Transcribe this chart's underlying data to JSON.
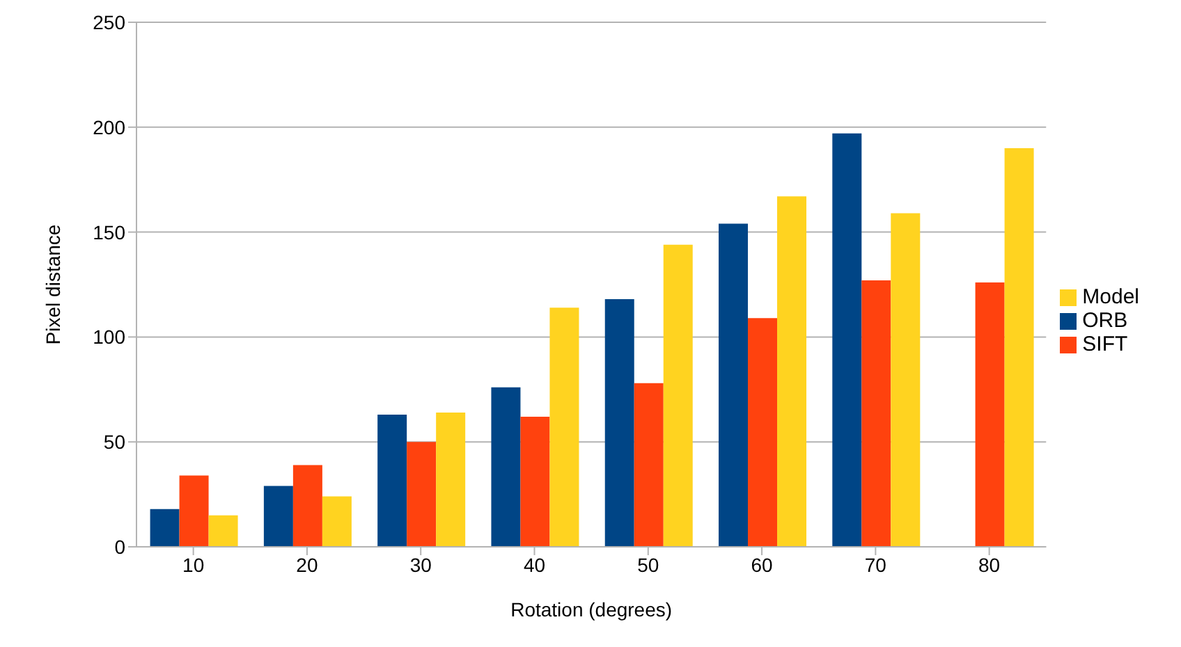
{
  "chart_data": {
    "type": "bar",
    "xlabel": "Rotation (degrees)",
    "ylabel": "Pixel distance",
    "categories": [
      "10",
      "20",
      "30",
      "40",
      "50",
      "60",
      "70",
      "80"
    ],
    "series": [
      {
        "name": "ORB",
        "color": "#004586",
        "values": [
          18,
          29,
          63,
          76,
          118,
          154,
          197,
          null
        ]
      },
      {
        "name": "SIFT",
        "color": "#ff420e",
        "values": [
          34,
          39,
          50,
          62,
          78,
          109,
          127,
          126
        ]
      },
      {
        "name": "Model",
        "color": "#ffd320",
        "values": [
          15,
          24,
          64,
          114,
          144,
          167,
          159,
          190
        ]
      }
    ],
    "ylim": [
      0,
      250
    ],
    "yticks": [
      0,
      50,
      100,
      150,
      200,
      250
    ],
    "grid": "y",
    "legend": "right"
  }
}
